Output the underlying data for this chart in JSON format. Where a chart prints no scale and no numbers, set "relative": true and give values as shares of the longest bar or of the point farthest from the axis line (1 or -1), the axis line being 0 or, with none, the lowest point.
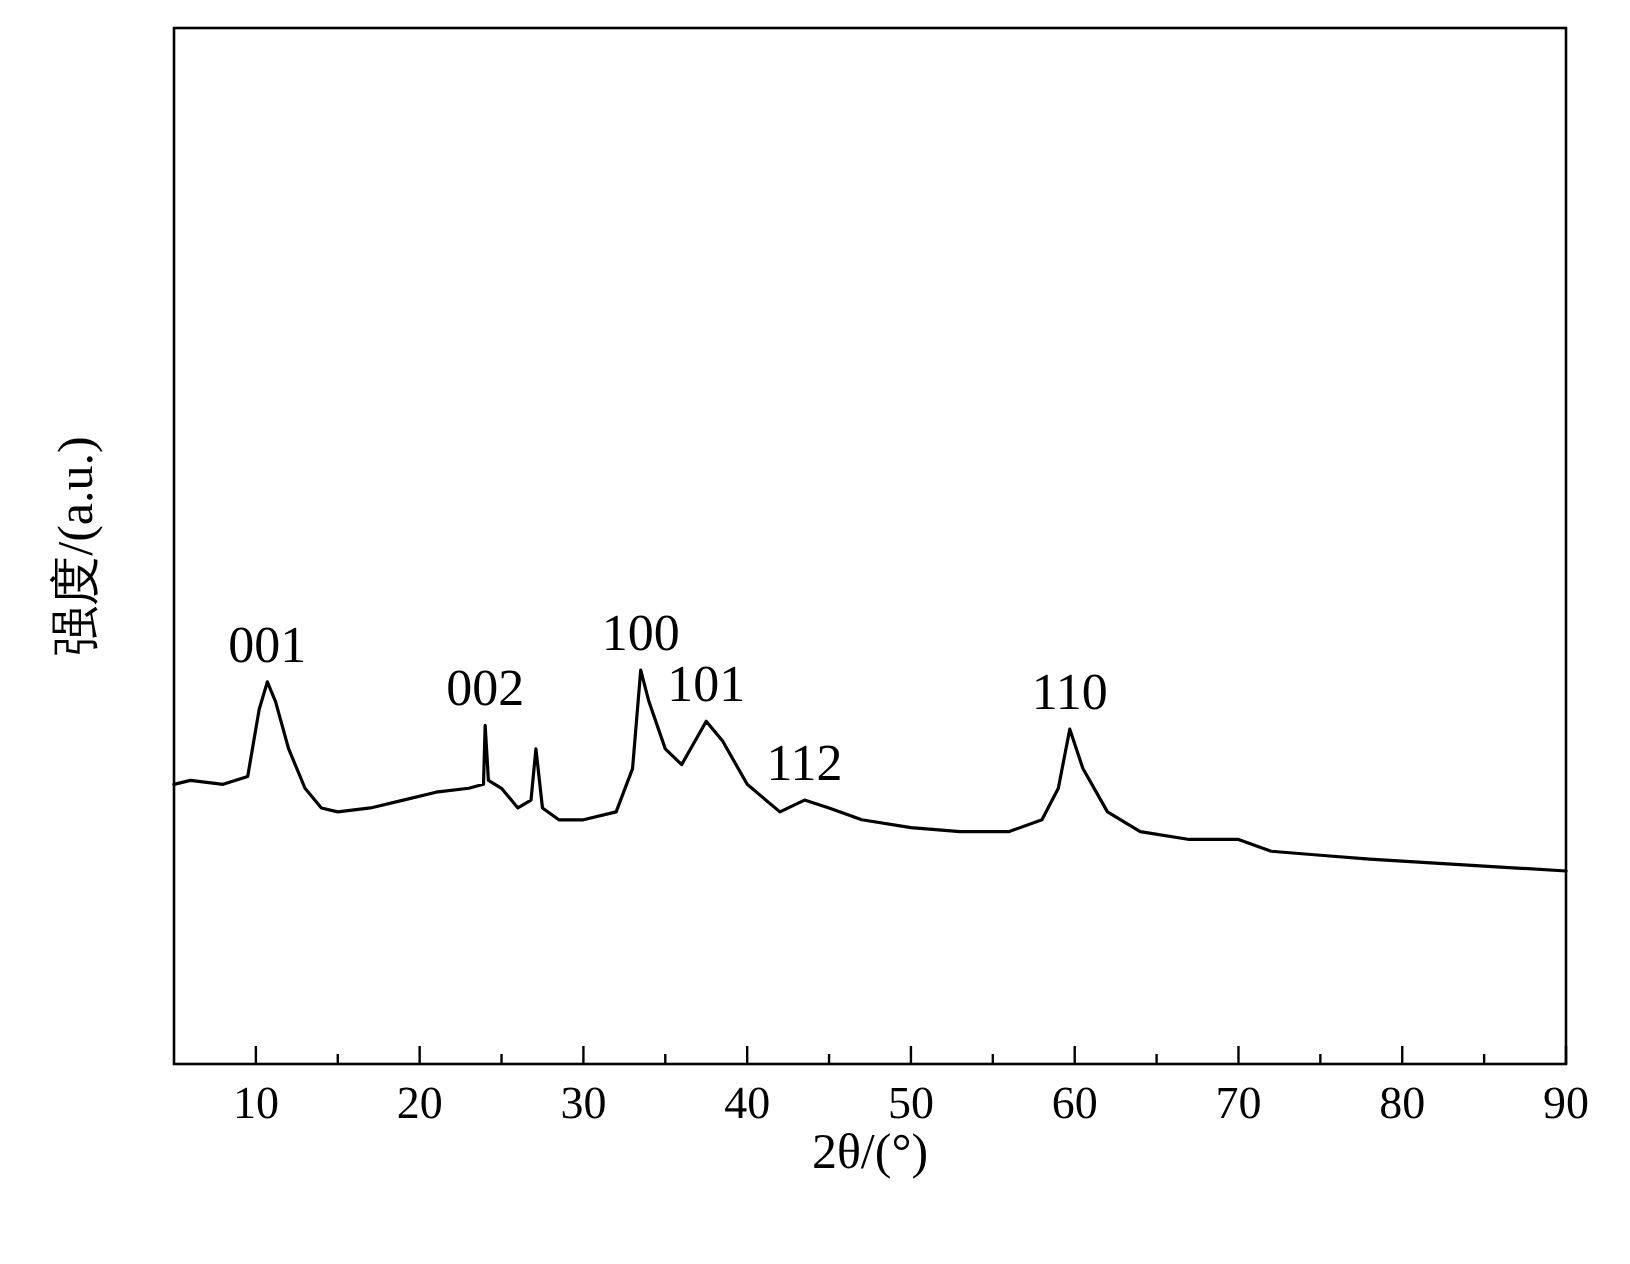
{
  "chart_data": {
    "type": "line",
    "relative": true,
    "xlabel": "2θ/(°)",
    "ylabel": "强度/(a.u.)",
    "tick_labels": "x",
    "grid": false,
    "marker": "none",
    "line_style": "solid",
    "xlim": [
      5,
      90
    ],
    "xticks": [
      10,
      {
        "value": 15,
        "label": null
      },
      20,
      {
        "value": 25,
        "label": null
      },
      30,
      {
        "value": 35,
        "label": null
      },
      40,
      {
        "value": 45,
        "label": null
      },
      50,
      {
        "value": 55,
        "label": null
      },
      60,
      {
        "value": 65,
        "label": null
      },
      70,
      {
        "value": 75,
        "label": null
      },
      80,
      {
        "value": 85,
        "label": null
      },
      90
    ],
    "series": [
      {
        "color": "#000000",
        "x": [
          5,
          6,
          8,
          9.5,
          10.2,
          10.7,
          11.2,
          12,
          13,
          14,
          15,
          17,
          19,
          21,
          23,
          23.9,
          24.0,
          24.2,
          25,
          26,
          26.8,
          27.1,
          27.5,
          28.5,
          30,
          32,
          33,
          33.5,
          34,
          35,
          36,
          37.5,
          38.5,
          40,
          42,
          43.5,
          45,
          47,
          50,
          53,
          56,
          58,
          59,
          59.7,
          60.5,
          62,
          64,
          67,
          70,
          72,
          75,
          78,
          82,
          86,
          90
        ],
        "values": [
          0.71,
          0.72,
          0.71,
          0.73,
          0.9,
          0.97,
          0.92,
          0.8,
          0.7,
          0.65,
          0.64,
          0.65,
          0.67,
          0.69,
          0.7,
          0.71,
          0.86,
          0.72,
          0.7,
          0.65,
          0.67,
          0.8,
          0.65,
          0.62,
          0.62,
          0.64,
          0.75,
          1.0,
          0.92,
          0.8,
          0.76,
          0.87,
          0.82,
          0.71,
          0.64,
          0.67,
          0.65,
          0.62,
          0.6,
          0.59,
          0.59,
          0.62,
          0.7,
          0.85,
          0.75,
          0.64,
          0.59,
          0.57,
          0.57,
          0.54,
          0.53,
          0.52,
          0.51,
          0.5,
          0.49
        ]
      }
    ],
    "annotations": [
      {
        "text": "001",
        "x": 10.7,
        "y": 0.97
      },
      {
        "text": "002",
        "x": 24.0,
        "y": 0.86
      },
      {
        "text": "100",
        "x": 33.5,
        "y": 1.0
      },
      {
        "text": "101",
        "x": 37.5,
        "y": 0.87
      },
      {
        "text": "112",
        "x": 43.5,
        "y": 0.67
      },
      {
        "text": "110",
        "x": 59.7,
        "y": 0.85
      }
    ]
  }
}
